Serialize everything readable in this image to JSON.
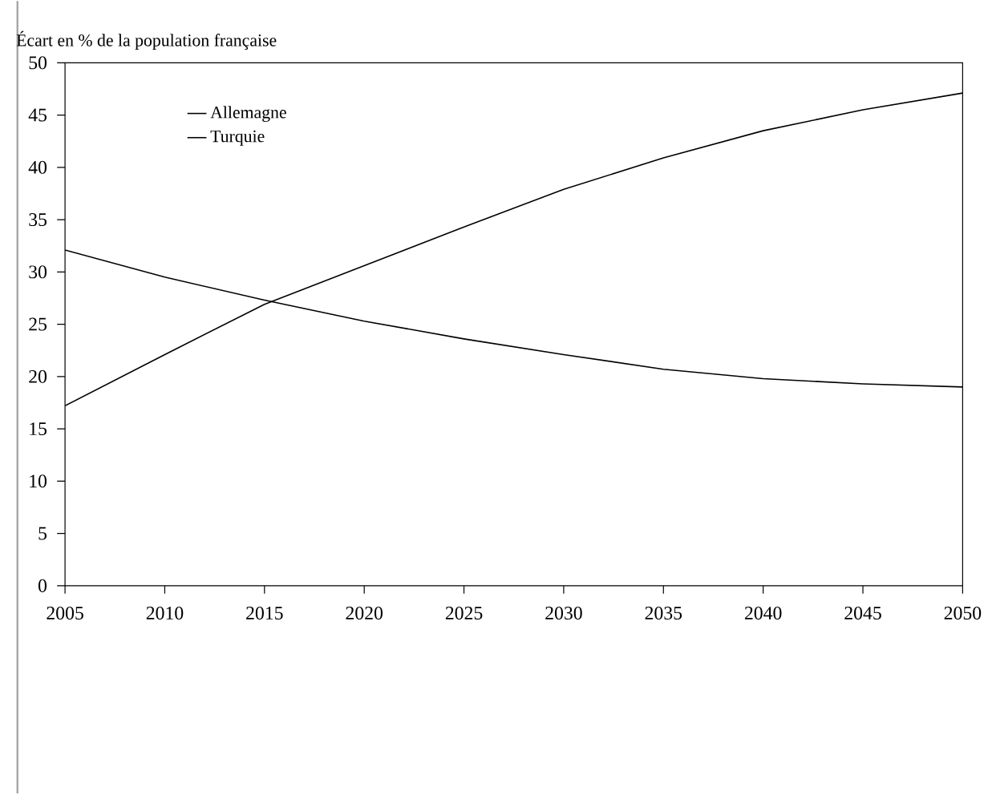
{
  "chart_data": {
    "type": "line",
    "ylabel": "Écart en % de la population française",
    "x": [
      2005,
      2010,
      2015,
      2020,
      2025,
      2030,
      2035,
      2040,
      2045,
      2050
    ],
    "series": [
      {
        "name": "Allemagne",
        "color": "#000000",
        "values": [
          32.1,
          29.5,
          27.3,
          25.3,
          23.6,
          22.1,
          20.7,
          19.8,
          19.3,
          19.0
        ]
      },
      {
        "name": "Turquie",
        "color": "#000000",
        "values": [
          17.2,
          22.1,
          26.9,
          30.6,
          34.3,
          37.9,
          40.9,
          43.5,
          45.5,
          47.1
        ]
      }
    ],
    "xlim": [
      2005,
      2050
    ],
    "xticks": [
      2005,
      2010,
      2015,
      2020,
      2025,
      2030,
      2035,
      2040,
      2045,
      2050
    ],
    "ylim": [
      0,
      50
    ],
    "yticks": [
      0,
      5,
      10,
      15,
      20,
      25,
      30,
      35,
      40,
      45,
      50
    ],
    "grid": false,
    "legend": "top left",
    "marker": "none",
    "line_style": "solid"
  }
}
